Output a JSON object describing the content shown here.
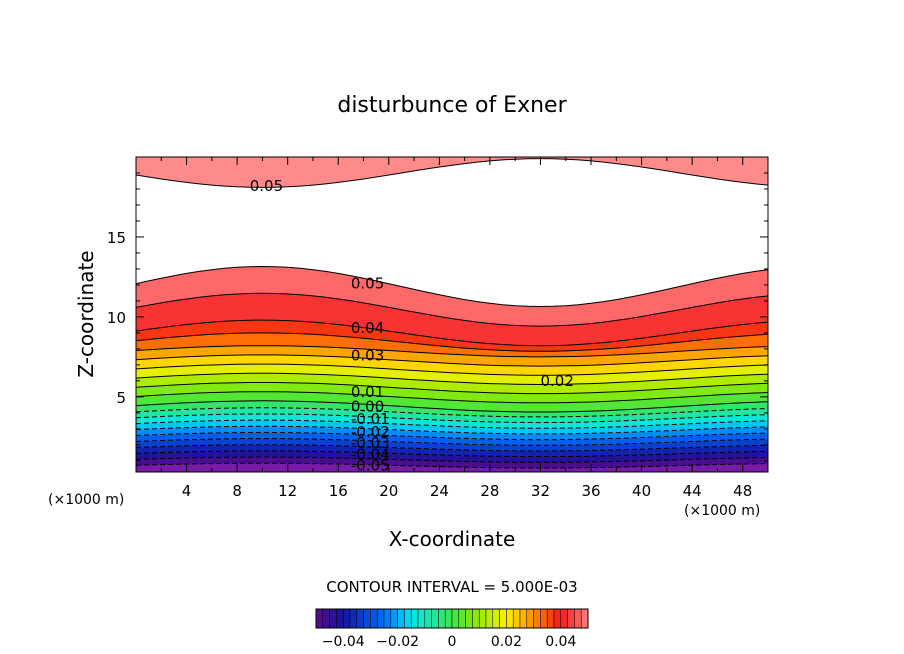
{
  "chart_data": {
    "type": "contour",
    "title": "disturbunce of Exner",
    "xlabel": "X-coordinate",
    "ylabel": "Z-coordinate",
    "x_unit_left": "(×1000 m)",
    "x_unit_right": "(×1000 m)",
    "xlim": [
      0,
      50
    ],
    "ylim": [
      0.3,
      20
    ],
    "x_ticks": [
      4,
      8,
      12,
      16,
      20,
      24,
      28,
      32,
      36,
      40,
      44,
      48
    ],
    "y_ticks": [
      5,
      10,
      15
    ],
    "contour_interval_text": "CONTOUR INTERVAL = 5.000E-03",
    "contour_interval": 0.005,
    "levels": [
      -0.05,
      0.05
    ],
    "contour_labels": [
      {
        "text": "0.05",
        "x": 9,
        "z": 18.2
      },
      {
        "text": "0.05",
        "x": 17,
        "z": 12.1
      },
      {
        "text": "0.04",
        "x": 17,
        "z": 9.3
      },
      {
        "text": "0.03",
        "x": 17,
        "z": 7.6
      },
      {
        "text": "0.02",
        "x": 32,
        "z": 6.0
      },
      {
        "text": "0.01",
        "x": 17,
        "z": 5.3
      },
      {
        "text": "0.00",
        "x": 17,
        "z": 4.4
      },
      {
        "text": "-0.01",
        "x": 17,
        "z": 3.6
      },
      {
        "text": "-0.02",
        "x": 17,
        "z": 2.8
      },
      {
        "text": "-0.03",
        "x": 17,
        "z": 2.1
      },
      {
        "text": "-0.04",
        "x": 17,
        "z": 1.4
      },
      {
        "text": "-0.05",
        "x": 17,
        "z": 0.7
      }
    ],
    "colorbar": {
      "range": [
        -0.05,
        0.05
      ],
      "tick_labels": [
        "−0.04",
        "−0.02",
        "0",
        "0.02",
        "0.04"
      ],
      "tick_values": [
        -0.04,
        -0.02,
        0,
        0.02,
        0.04
      ]
    },
    "colors": {
      "low": "#5a0a8a",
      "zero": "#3ce65a",
      "high": "#ff8080"
    }
  }
}
